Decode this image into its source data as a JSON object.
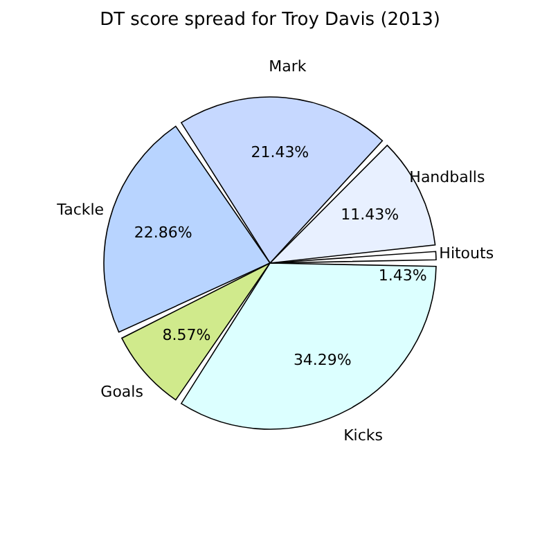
{
  "chart_data": {
    "type": "pie",
    "title": "DT score spread for Troy Davis (2013)",
    "categories": [
      "Hitouts",
      "Handballs",
      "Mark",
      "Tackle",
      "Goals",
      "Kicks"
    ],
    "values": [
      1.43,
      11.43,
      21.43,
      22.86,
      8.57,
      34.29
    ],
    "colors": [
      "#ffffff",
      "#e8f0ff",
      "#c6d8ff",
      "#b8d4ff",
      "#d0ea8c",
      "#dcffff"
    ],
    "value_labels": [
      "1.43%",
      "11.43%",
      "21.43%",
      "22.86%",
      "8.57%",
      "34.29%"
    ],
    "legend": false
  }
}
